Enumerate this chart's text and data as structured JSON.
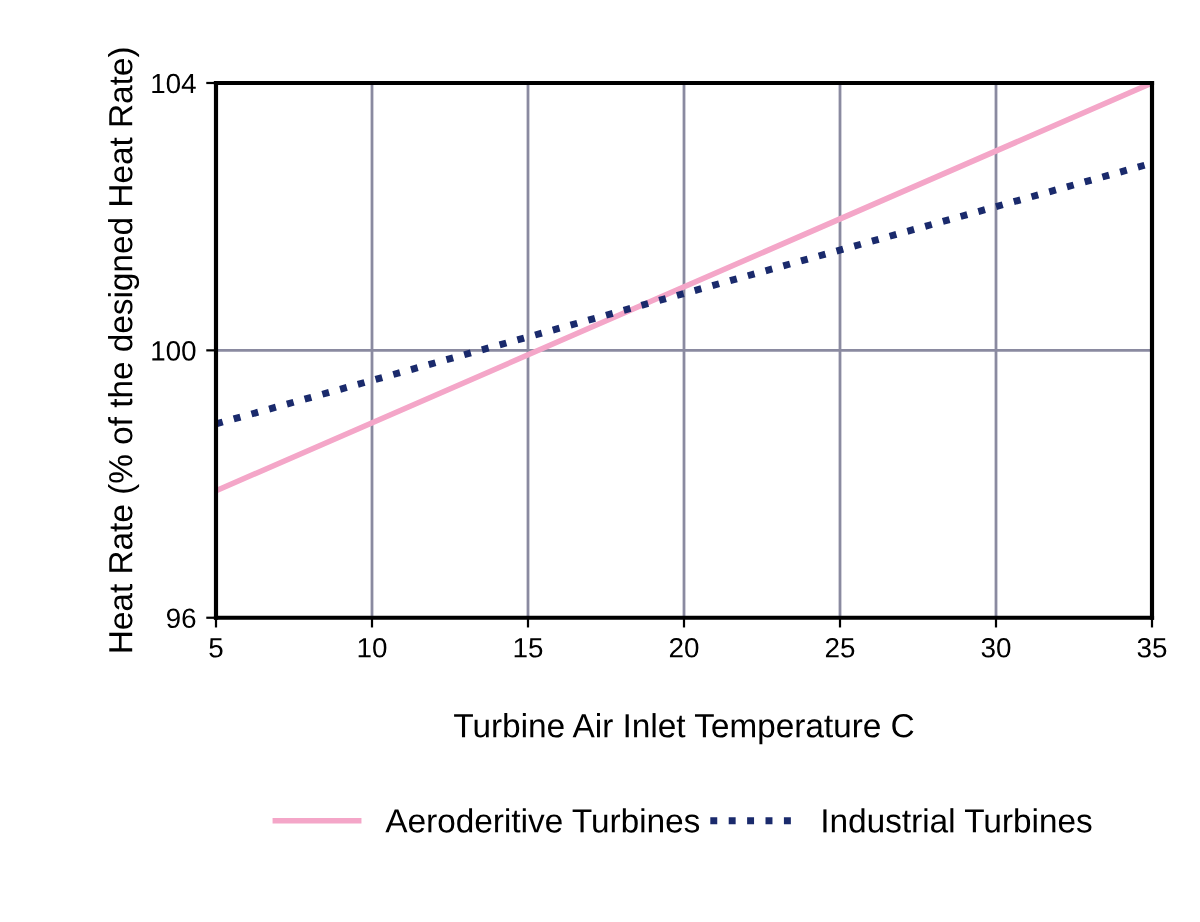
{
  "chart_data": {
    "type": "line",
    "xlabel": "Turbine Air Inlet Temperature C",
    "ylabel": "Heat Rate (% of the designed Heat Rate)",
    "x": [
      5,
      35
    ],
    "series": [
      {
        "name": "Aeroderitive Turbines",
        "color": "#f4a6c8",
        "values": [
          97.9,
          104.0
        ],
        "line_style": "solid"
      },
      {
        "name": "Industrial Turbines",
        "color": "#1a2a6c",
        "values": [
          98.9,
          102.8
        ],
        "line_style": "dotted"
      }
    ],
    "xlim": [
      5,
      35
    ],
    "xticks": [
      5,
      10,
      15,
      20,
      25,
      30,
      35
    ],
    "ylim": [
      96,
      104
    ],
    "yticks": [
      96,
      100,
      104
    ],
    "grid": true,
    "legend": "bottom",
    "marker": "none"
  }
}
